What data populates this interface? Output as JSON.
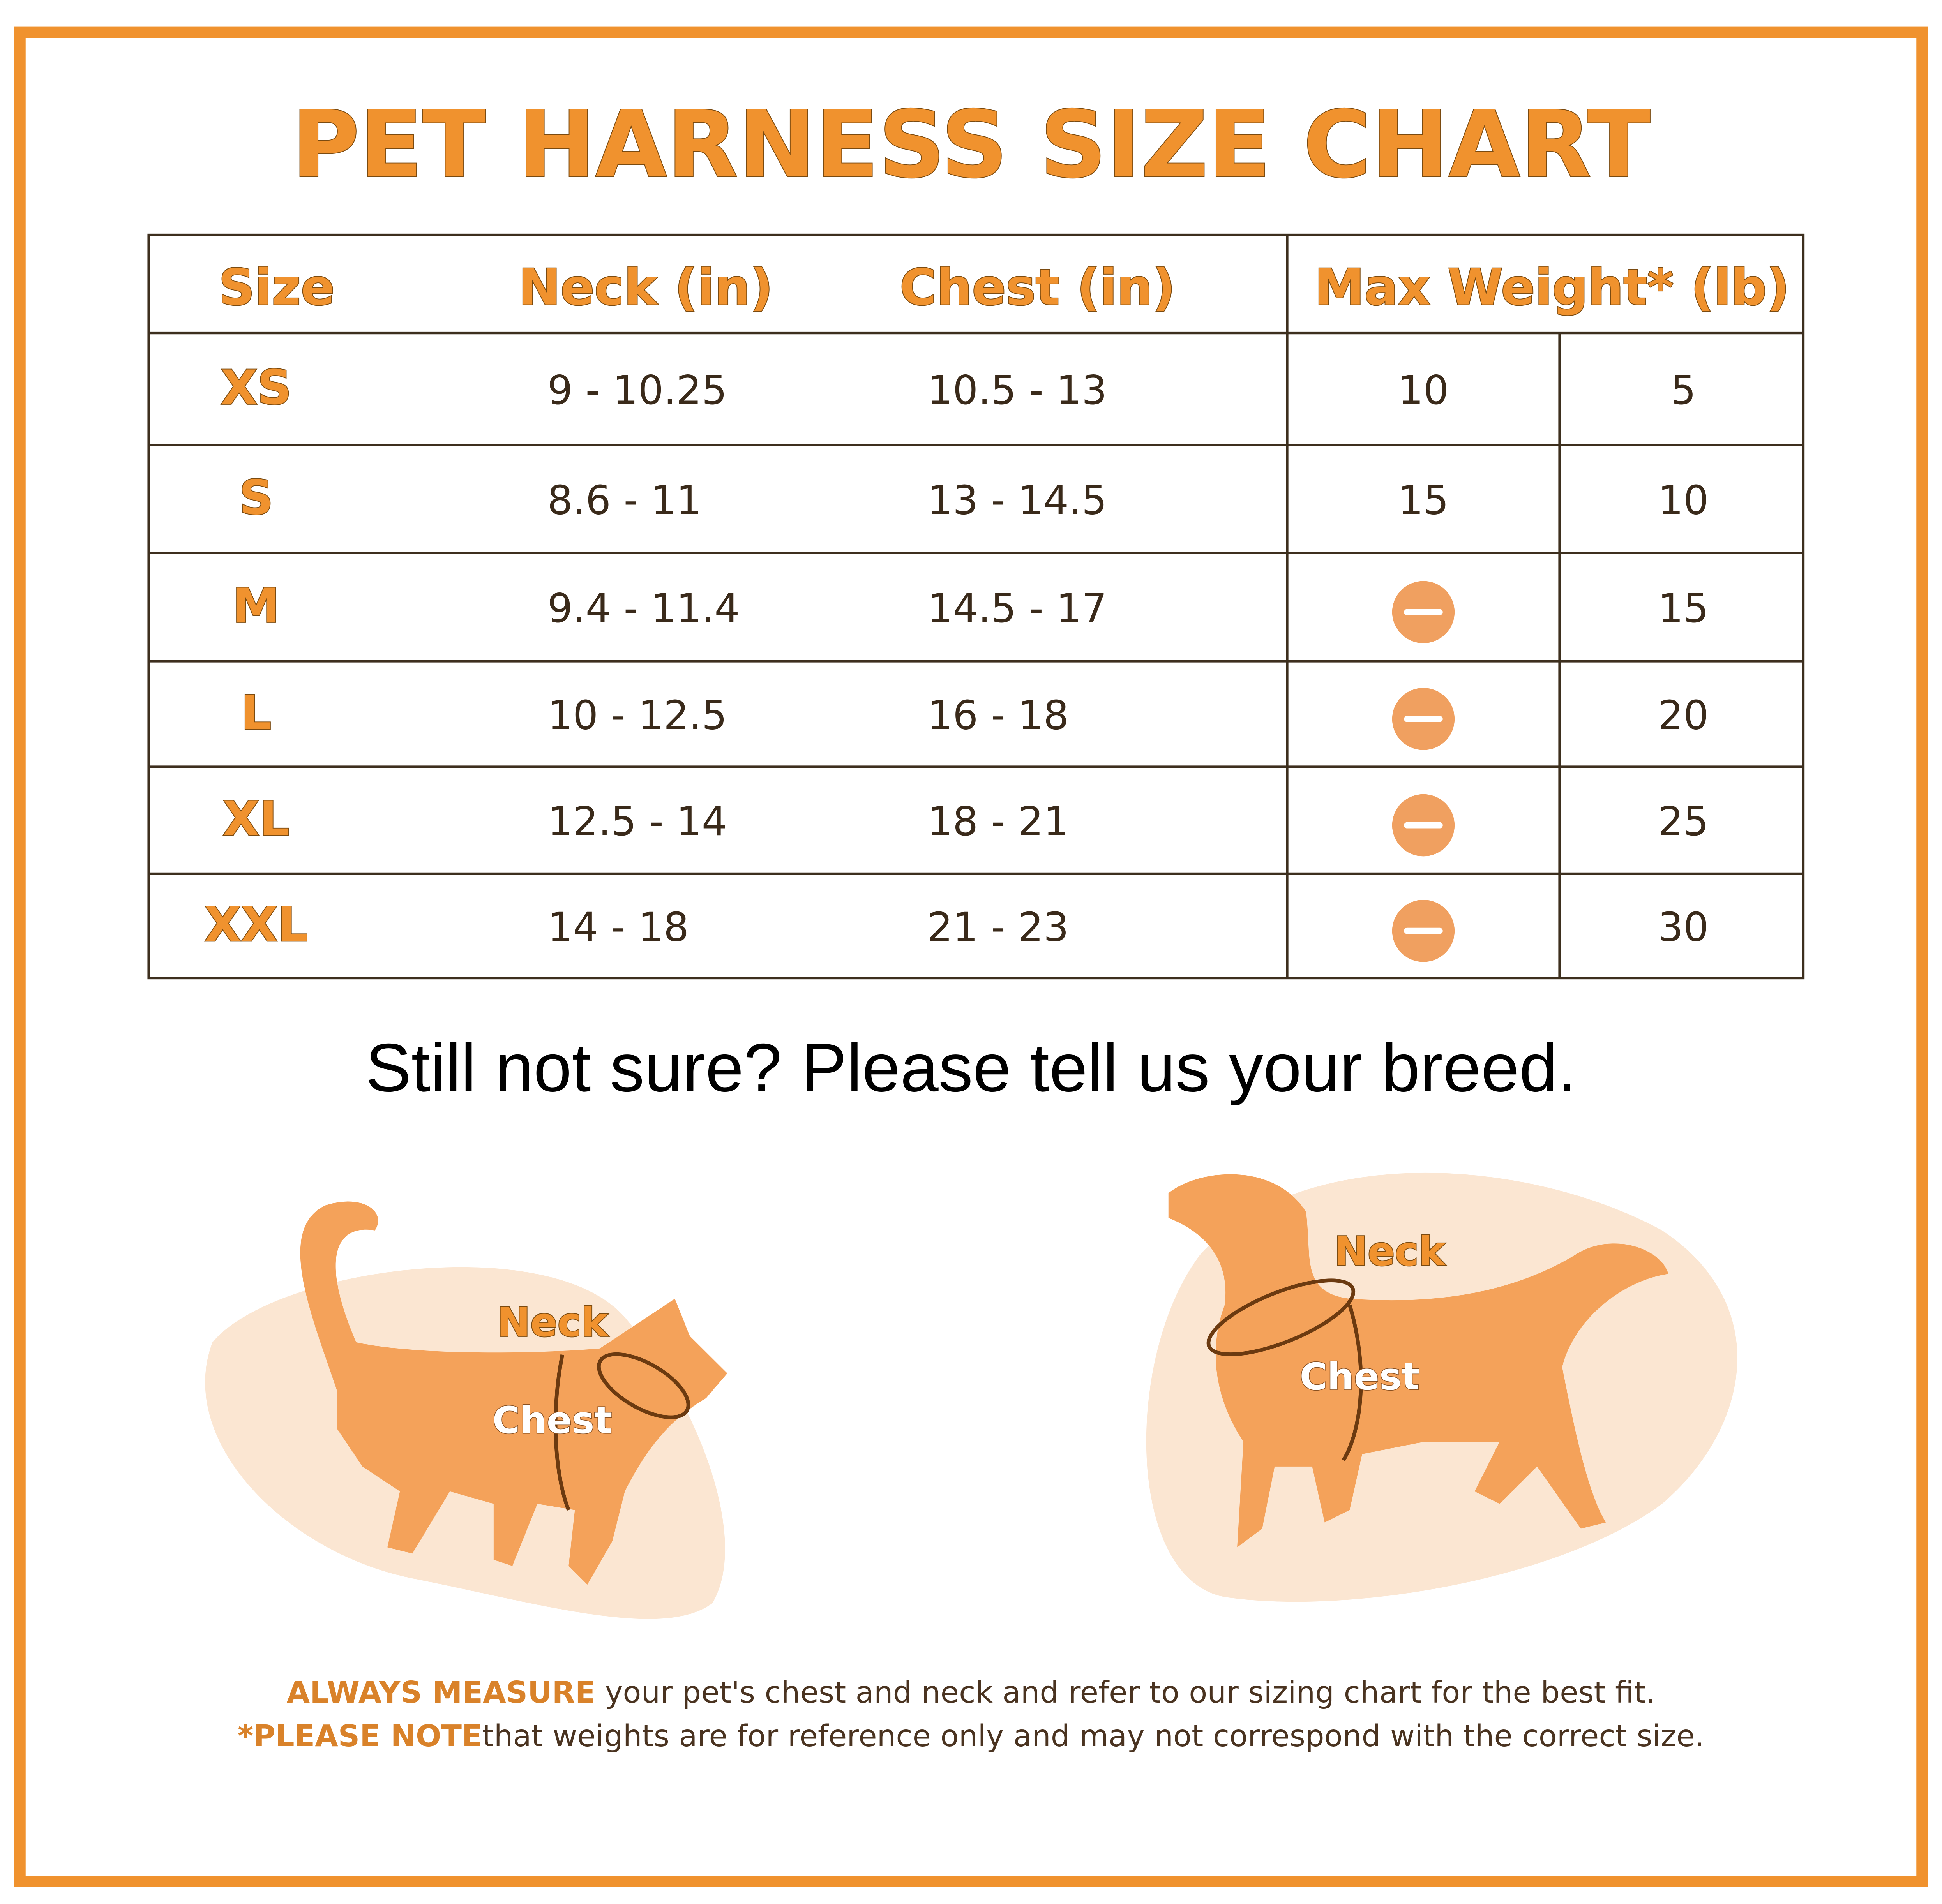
{
  "header": {
    "title": "PET HARNESS SIZE CHART"
  },
  "table": {
    "columns": [
      "Size",
      "Neck (in)",
      "Chest (in)",
      "Max Weight* (lb)"
    ],
    "rows": [
      [
        "XS",
        "9 - 10.25",
        "10.5 - 13",
        10,
        5
      ],
      [
        "S",
        "8.6 - 11",
        "13 - 14.5",
        15,
        10
      ],
      [
        "M",
        "9.4 - 11.4",
        "14.5 - 17",
        null,
        15
      ],
      [
        "L",
        "10 - 12.5",
        "16 - 18",
        null,
        20
      ],
      [
        "XL",
        "12.5 - 14",
        "18 - 21",
        null,
        25
      ],
      [
        "XXL",
        "14 - 18",
        "21 - 23",
        null,
        30
      ]
    ]
  },
  "subtitle": "Still not sure? Please tell us your breed.",
  "cat": {
    "neck_label": "Neck",
    "chest_label": "Chest"
  },
  "dog": {
    "neck_label": "Neck",
    "chest_label": "Chest"
  },
  "footer": {
    "line1_bold": "ALWAYS MEASURE",
    "line1_text": " your pet's chest and neck and refer to our sizing chart for the best fit.",
    "line2_bold": "*PLEASE NOTE",
    "line2_text": "that weights are for reference only and may not correspond with the correct size."
  }
}
